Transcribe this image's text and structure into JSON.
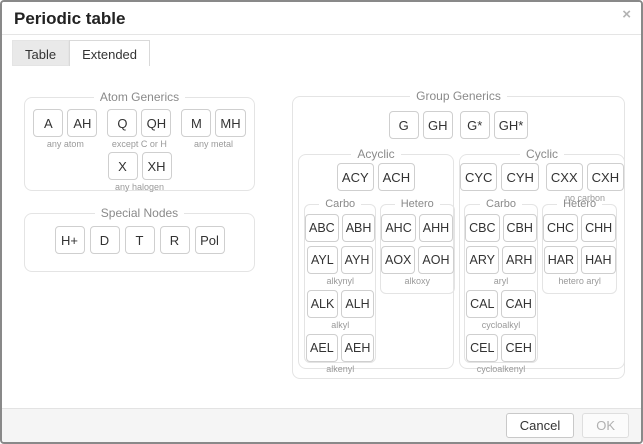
{
  "dialog": {
    "title": "Periodic table",
    "close_glyph": "×"
  },
  "tabs": [
    {
      "label": "Table",
      "active": false
    },
    {
      "label": "Extended",
      "active": true
    }
  ],
  "footer": {
    "cancel_label": "Cancel",
    "ok_label": "OK",
    "ok_disabled": true
  },
  "colors": {
    "dialog_border": "#898989",
    "footer_bg": "#f5f5f5",
    "fieldset_border": "#e4e4e4",
    "button_border": "#cfcfcf",
    "button_text": "#333333",
    "legend_text": "#8a8a8a",
    "caption_text": "#9a9a9a",
    "inactive_tab_bg": "#e9e9e9"
  },
  "atom_generics": {
    "legend": "Atom Generics",
    "groups": [
      {
        "buttons": [
          "A",
          "AH"
        ],
        "caption": "any atom"
      },
      {
        "buttons": [
          "Q",
          "QH"
        ],
        "caption": "except C or H"
      },
      {
        "buttons": [
          "M",
          "MH"
        ],
        "caption": "any metal"
      }
    ],
    "halogen": {
      "buttons": [
        "X",
        "XH"
      ],
      "caption": "any halogen"
    }
  },
  "special_nodes": {
    "legend": "Special Nodes",
    "buttons": [
      "H+",
      "D",
      "T",
      "R",
      "Pol"
    ]
  },
  "group_generics": {
    "legend": "Group Generics",
    "pairs": [
      [
        "G",
        "GH"
      ],
      [
        "G*",
        "GH*"
      ]
    ],
    "acyclic": {
      "legend": "Acyclic",
      "top": {
        "buttons": [
          "ACY",
          "ACH"
        ]
      },
      "carbo": {
        "legend": "Carbo",
        "rows": [
          {
            "buttons": [
              "ABC",
              "ABH"
            ]
          },
          {
            "buttons": [
              "AYL",
              "AYH"
            ],
            "caption": "alkynyl"
          },
          {
            "buttons": [
              "ALK",
              "ALH"
            ],
            "caption": "alkyl"
          },
          {
            "buttons": [
              "AEL",
              "AEH"
            ],
            "caption": "alkenyl"
          }
        ]
      },
      "hetero": {
        "legend": "Hetero",
        "rows": [
          {
            "buttons": [
              "AHC",
              "AHH"
            ]
          },
          {
            "buttons": [
              "AOX",
              "AOH"
            ],
            "caption": "alkoxy"
          }
        ]
      }
    },
    "cyclic": {
      "legend": "Cyclic",
      "top": [
        {
          "buttons": [
            "CYC",
            "CYH"
          ]
        },
        {
          "buttons": [
            "CXX",
            "CXH"
          ],
          "caption": "no carbon"
        }
      ],
      "carbo": {
        "legend": "Carbo",
        "rows": [
          {
            "buttons": [
              "CBC",
              "CBH"
            ]
          },
          {
            "buttons": [
              "ARY",
              "ARH"
            ],
            "caption": "aryl"
          },
          {
            "buttons": [
              "CAL",
              "CAH"
            ],
            "caption": "cycloalkyl"
          },
          {
            "buttons": [
              "CEL",
              "CEH"
            ],
            "caption": "cycloalkenyl"
          }
        ]
      },
      "hetero": {
        "legend": "Hetero",
        "rows": [
          {
            "buttons": [
              "CHC",
              "CHH"
            ]
          },
          {
            "buttons": [
              "HAR",
              "HAH"
            ],
            "caption": "hetero aryl"
          }
        ]
      }
    }
  }
}
